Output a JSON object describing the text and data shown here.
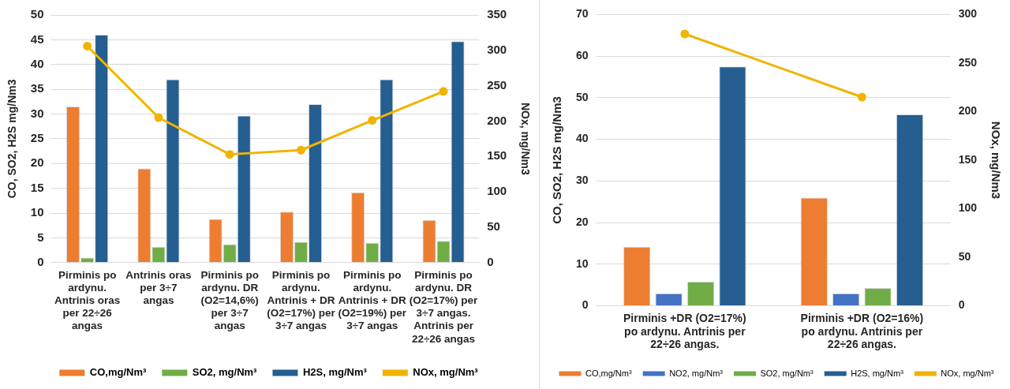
{
  "chart_data": [
    {
      "type": "bar",
      "ylabel": "CO, SO2, H2S mg/Nm3",
      "y2label": "NOx, mg/Nm3",
      "categories": [
        "Pirminis po ardynu. Antrinis oras per 22÷26 angas",
        "Antrinis oras per 3÷7 angas",
        "Pirminis po ardynu. DR (O2=14,6%) per 3÷7 angas",
        "Pirminis po ardynu. Antrinis + DR (O2=17%) per 3÷7 angas",
        "Pirminis po ardynu. Antrinis + DR (O2=19%) per 3÷7 angas",
        "Pirminis po ardynu. DR (O2=17%) per 3÷7 angas. Antrinis per 22÷26 angas"
      ],
      "series": [
        {
          "name": "CO,mg/Nm³",
          "color": "#ed7d31",
          "values": [
            31.5,
            19,
            8.8,
            10.3,
            14.2,
            8.6
          ]
        },
        {
          "name": "SO2, mg/Nm³",
          "color": "#70ad47",
          "values": [
            1,
            3.2,
            3.7,
            4.2,
            4,
            4.4
          ]
        },
        {
          "name": "H2S, mg/Nm³",
          "color": "#255e91",
          "values": [
            46,
            37,
            29.7,
            32,
            37,
            44.7
          ]
        },
        {
          "name": "NOx, mg/Nm³",
          "color": "#f0b400",
          "type": "line",
          "axis": "y2",
          "values": [
            306,
            205,
            153,
            159,
            201,
            242
          ]
        }
      ],
      "ylim": [
        0,
        50
      ],
      "yticks": [
        0,
        5,
        10,
        15,
        20,
        25,
        30,
        35,
        40,
        45,
        50
      ],
      "y2lim": [
        0,
        350
      ],
      "y2ticks": [
        0,
        50,
        100,
        150,
        200,
        250,
        300,
        350
      ],
      "grid": "y",
      "legend": "bottom",
      "marker": "circle"
    },
    {
      "type": "bar",
      "ylabel": "CO, SO2, H2S mg/Nm3",
      "y2label": "NOx, mg/Nm3",
      "categories": [
        "Pirminis +DR (O2=17%) po ardynu. Antrinis per 22÷26 angas.",
        "Pirminis +DR (O2=16%) po ardynu. Antrinis per 22÷26 angas."
      ],
      "series": [
        {
          "name": "CO,mg/Nm³",
          "color": "#ed7d31",
          "values": [
            14.2,
            26
          ]
        },
        {
          "name": "NO2, mg/Nm³",
          "color": "#4472c4",
          "values": [
            3,
            3
          ]
        },
        {
          "name": "SO2, mg/Nm³",
          "color": "#70ad47",
          "values": [
            5.8,
            4.3
          ]
        },
        {
          "name": "H2S, mg/Nm³",
          "color": "#255e91",
          "values": [
            57.5,
            46
          ]
        },
        {
          "name": "NOx, mg/Nm³",
          "color": "#f0b400",
          "type": "line",
          "axis": "y2",
          "values": [
            280,
            215
          ]
        }
      ],
      "ylim": [
        0,
        70
      ],
      "yticks": [
        0,
        10,
        20,
        30,
        40,
        50,
        60,
        70
      ],
      "y2lim": [
        0,
        300
      ],
      "y2ticks": [
        0,
        50,
        100,
        150,
        200,
        250,
        300
      ],
      "grid": "y",
      "legend": "bottom",
      "marker": "circle"
    }
  ]
}
